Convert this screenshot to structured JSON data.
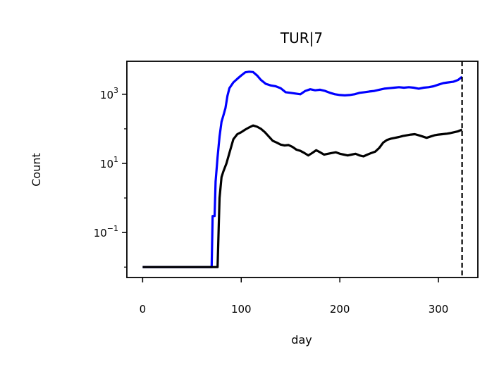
{
  "chart_data": {
    "type": "line",
    "title": "TUR|7",
    "xlabel": "day",
    "ylabel": "Count",
    "yscale": "log",
    "xlim": [
      -16,
      340
    ],
    "ylim": [
      0.005,
      9000
    ],
    "grid": false,
    "legend": "none",
    "x_ticks": [
      0,
      100,
      200,
      300
    ],
    "x_tick_labels": [
      "0",
      "100",
      "200",
      "300"
    ],
    "y_ticks": [
      0.1,
      10,
      1000
    ],
    "y_tick_labels": [
      {
        "base": "10",
        "exp": "−1"
      },
      {
        "base": "10",
        "exp": "1"
      },
      {
        "base": "10",
        "exp": "3"
      }
    ],
    "vline": {
      "x": 324,
      "style": "dashed",
      "color": "#000000"
    },
    "series": [
      {
        "color": "#0000ff",
        "points": [
          [
            0,
            0.01
          ],
          [
            20,
            0.01
          ],
          [
            40,
            0.01
          ],
          [
            60,
            0.01
          ],
          [
            70,
            0.01
          ],
          [
            71,
            0.3
          ],
          [
            73,
            0.3
          ],
          [
            74,
            3
          ],
          [
            76,
            15
          ],
          [
            78,
            60
          ],
          [
            80,
            160
          ],
          [
            82,
            250
          ],
          [
            84,
            400
          ],
          [
            86,
            900
          ],
          [
            88,
            1500
          ],
          [
            92,
            2200
          ],
          [
            96,
            2800
          ],
          [
            100,
            3500
          ],
          [
            104,
            4300
          ],
          [
            108,
            4500
          ],
          [
            112,
            4400
          ],
          [
            116,
            3500
          ],
          [
            120,
            2600
          ],
          [
            125,
            2000
          ],
          [
            130,
            1800
          ],
          [
            135,
            1700
          ],
          [
            140,
            1500
          ],
          [
            145,
            1150
          ],
          [
            150,
            1100
          ],
          [
            155,
            1050
          ],
          [
            160,
            1000
          ],
          [
            165,
            1250
          ],
          [
            170,
            1400
          ],
          [
            175,
            1300
          ],
          [
            180,
            1350
          ],
          [
            185,
            1250
          ],
          [
            190,
            1100
          ],
          [
            195,
            1000
          ],
          [
            200,
            950
          ],
          [
            205,
            930
          ],
          [
            210,
            950
          ],
          [
            215,
            1000
          ],
          [
            220,
            1100
          ],
          [
            225,
            1150
          ],
          [
            230,
            1200
          ],
          [
            235,
            1250
          ],
          [
            240,
            1350
          ],
          [
            245,
            1450
          ],
          [
            250,
            1500
          ],
          [
            255,
            1550
          ],
          [
            260,
            1600
          ],
          [
            265,
            1550
          ],
          [
            270,
            1600
          ],
          [
            275,
            1550
          ],
          [
            280,
            1450
          ],
          [
            285,
            1550
          ],
          [
            290,
            1600
          ],
          [
            295,
            1700
          ],
          [
            300,
            1900
          ],
          [
            305,
            2100
          ],
          [
            310,
            2200
          ],
          [
            315,
            2300
          ],
          [
            320,
            2600
          ],
          [
            324,
            3200
          ]
        ]
      },
      {
        "color": "#000000",
        "points": [
          [
            0,
            0.01
          ],
          [
            20,
            0.01
          ],
          [
            40,
            0.01
          ],
          [
            60,
            0.01
          ],
          [
            76,
            0.01
          ],
          [
            78,
            1
          ],
          [
            80,
            4
          ],
          [
            82,
            6
          ],
          [
            85,
            10
          ],
          [
            88,
            20
          ],
          [
            92,
            50
          ],
          [
            96,
            70
          ],
          [
            100,
            80
          ],
          [
            104,
            95
          ],
          [
            108,
            110
          ],
          [
            112,
            125
          ],
          [
            116,
            115
          ],
          [
            120,
            100
          ],
          [
            124,
            80
          ],
          [
            128,
            60
          ],
          [
            132,
            45
          ],
          [
            136,
            40
          ],
          [
            140,
            35
          ],
          [
            144,
            33
          ],
          [
            148,
            34
          ],
          [
            152,
            30
          ],
          [
            156,
            25
          ],
          [
            160,
            23
          ],
          [
            164,
            20
          ],
          [
            168,
            17
          ],
          [
            172,
            20
          ],
          [
            176,
            24
          ],
          [
            180,
            21
          ],
          [
            184,
            18
          ],
          [
            188,
            19
          ],
          [
            192,
            20
          ],
          [
            196,
            21
          ],
          [
            200,
            19
          ],
          [
            204,
            18
          ],
          [
            208,
            17
          ],
          [
            212,
            18
          ],
          [
            216,
            19
          ],
          [
            220,
            17
          ],
          [
            224,
            16
          ],
          [
            228,
            18
          ],
          [
            232,
            20
          ],
          [
            236,
            22
          ],
          [
            240,
            28
          ],
          [
            244,
            40
          ],
          [
            248,
            48
          ],
          [
            252,
            52
          ],
          [
            256,
            55
          ],
          [
            260,
            58
          ],
          [
            264,
            62
          ],
          [
            268,
            65
          ],
          [
            272,
            68
          ],
          [
            276,
            70
          ],
          [
            280,
            65
          ],
          [
            284,
            60
          ],
          [
            288,
            55
          ],
          [
            292,
            60
          ],
          [
            296,
            65
          ],
          [
            300,
            68
          ],
          [
            304,
            70
          ],
          [
            308,
            72
          ],
          [
            312,
            75
          ],
          [
            316,
            80
          ],
          [
            320,
            85
          ],
          [
            324,
            95
          ]
        ]
      }
    ]
  }
}
